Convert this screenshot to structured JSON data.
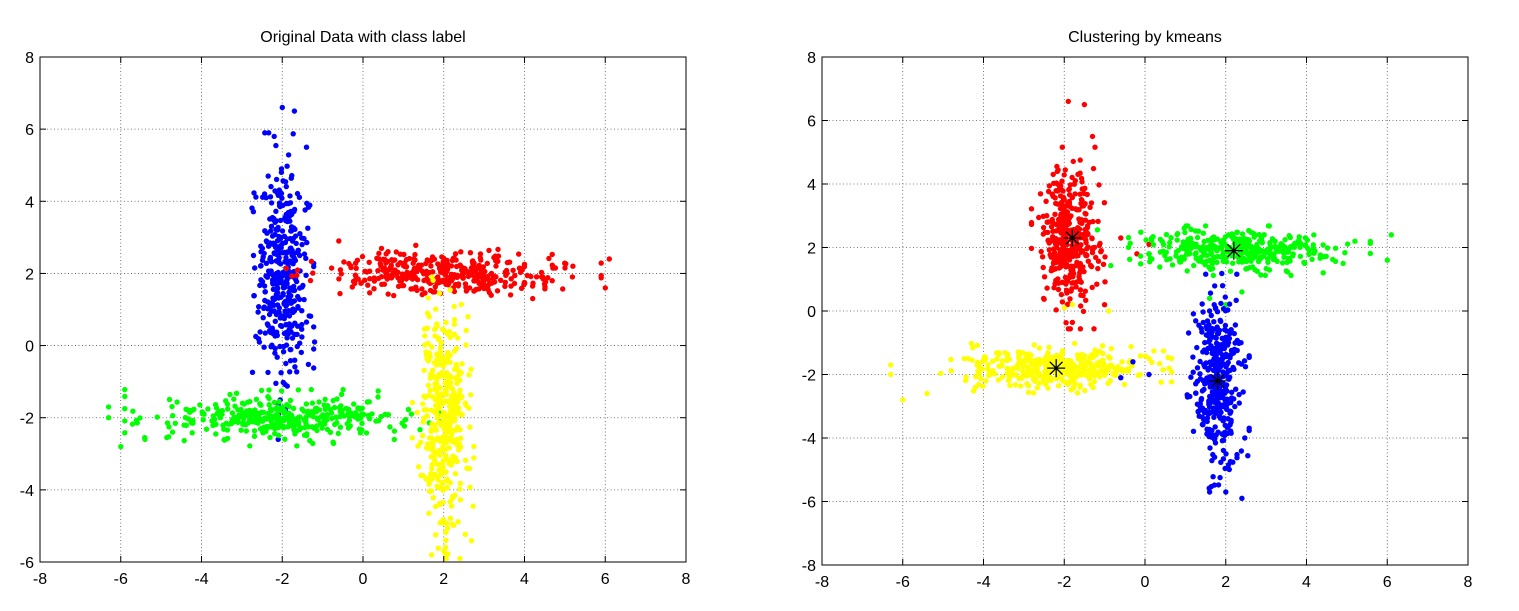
{
  "chart_data": [
    {
      "type": "scatter",
      "title": "Original Data with class label",
      "xlabel": "",
      "ylabel": "",
      "xlim": [
        -8,
        8
      ],
      "ylim": [
        -6,
        8
      ],
      "xticks": [
        "-8",
        "-6",
        "-4",
        "-2",
        "0",
        "2",
        "4",
        "6",
        "8"
      ],
      "yticks": [
        "-6",
        "-4",
        "-2",
        "0",
        "2",
        "4",
        "6",
        "8"
      ],
      "grid": true,
      "clusters": [
        {
          "color": "#0000ff",
          "center": [
            -2.0,
            2.0
          ],
          "spread": [
            0.3,
            1.5
          ],
          "n": 380,
          "extra": [
            [
              -2.0,
              6.6
            ],
            [
              -1.7,
              6.5
            ],
            [
              -1.4,
              5.5
            ],
            [
              -2.2,
              5.8
            ],
            [
              -1.2,
              0.1
            ],
            [
              -2.1,
              -2.6
            ],
            [
              -2.4,
              4.1
            ]
          ]
        },
        {
          "color": "#ff0000",
          "center": [
            2.0,
            2.0
          ],
          "spread": [
            1.5,
            0.3
          ],
          "n": 380,
          "extra": [
            [
              6.1,
              2.4
            ],
            [
              6.0,
              1.6
            ],
            [
              5.2,
              2.2
            ],
            [
              -0.6,
              2.9
            ],
            [
              -1.3,
              1.8
            ]
          ]
        },
        {
          "color": "#00ff00",
          "center": [
            -2.0,
            -2.0
          ],
          "spread": [
            1.5,
            0.3
          ],
          "n": 380,
          "extra": [
            [
              -6.3,
              -1.7
            ],
            [
              -6.3,
              -2.0
            ],
            [
              -6.0,
              -2.8
            ],
            [
              -5.4,
              -2.6
            ],
            [
              1.2,
              -1.9
            ]
          ]
        },
        {
          "color": "#ffff00",
          "center": [
            2.0,
            -2.0
          ],
          "spread": [
            0.3,
            1.5
          ],
          "n": 380,
          "extra": [
            [
              2.0,
              -5.7
            ],
            [
              2.4,
              -5.9
            ],
            [
              1.7,
              -5.8
            ],
            [
              1.6,
              0.9
            ],
            [
              2.6,
              0.8
            ]
          ]
        }
      ],
      "centroids": []
    },
    {
      "type": "scatter",
      "title": "Clustering by kmeans",
      "xlabel": "",
      "ylabel": "",
      "xlim": [
        -8,
        8
      ],
      "ylim": [
        -8,
        8
      ],
      "xticks": [
        "-8",
        "-6",
        "-4",
        "-2",
        "0",
        "2",
        "4",
        "6",
        "8"
      ],
      "yticks": [
        "-8",
        "-6",
        "-4",
        "-2",
        "0",
        "2",
        "4",
        "6",
        "8"
      ],
      "grid": true,
      "clusters": [
        {
          "color": "#ff0000",
          "center": [
            -1.9,
            2.3
          ],
          "spread": [
            0.35,
            1.1
          ],
          "n": 380,
          "extra": [
            [
              -1.9,
              6.6
            ],
            [
              -1.5,
              6.5
            ],
            [
              -1.3,
              5.5
            ],
            [
              -0.6,
              2.3
            ],
            [
              -0.2,
              1.8
            ],
            [
              0.1,
              2.1
            ],
            [
              -1.0,
              0.2
            ]
          ]
        },
        {
          "color": "#00ff00",
          "center": [
            2.2,
            1.9
          ],
          "spread": [
            1.3,
            0.3
          ],
          "n": 380,
          "extra": [
            [
              6.1,
              2.4
            ],
            [
              6.0,
              1.6
            ],
            [
              5.2,
              2.2
            ],
            [
              1.6,
              0.4
            ],
            [
              2.4,
              0.6
            ],
            [
              2.0,
              0.2
            ]
          ]
        },
        {
          "color": "#ffff00",
          "center": [
            -2.2,
            -1.8
          ],
          "spread": [
            1.1,
            0.3
          ],
          "n": 380,
          "extra": [
            [
              -6.3,
              -1.7
            ],
            [
              -6.3,
              -2.0
            ],
            [
              -6.0,
              -2.8
            ],
            [
              -5.4,
              -2.6
            ],
            [
              -1.8,
              0.2
            ],
            [
              -2.0,
              0.1
            ],
            [
              -0.9,
              0.0
            ]
          ]
        },
        {
          "color": "#0000ff",
          "center": [
            1.8,
            -2.2
          ],
          "spread": [
            0.3,
            1.3
          ],
          "n": 380,
          "extra": [
            [
              2.0,
              -5.7
            ],
            [
              2.4,
              -5.9
            ],
            [
              1.6,
              -5.7
            ],
            [
              -0.6,
              -2.1
            ],
            [
              -0.3,
              -1.6
            ],
            [
              0.1,
              -2.0
            ],
            [
              1.6,
              0.0
            ]
          ]
        }
      ],
      "centroids": [
        [
          -1.8,
          2.3
        ],
        [
          2.2,
          1.9
        ],
        [
          -2.2,
          -1.8
        ],
        [
          1.8,
          -2.2
        ]
      ]
    }
  ]
}
